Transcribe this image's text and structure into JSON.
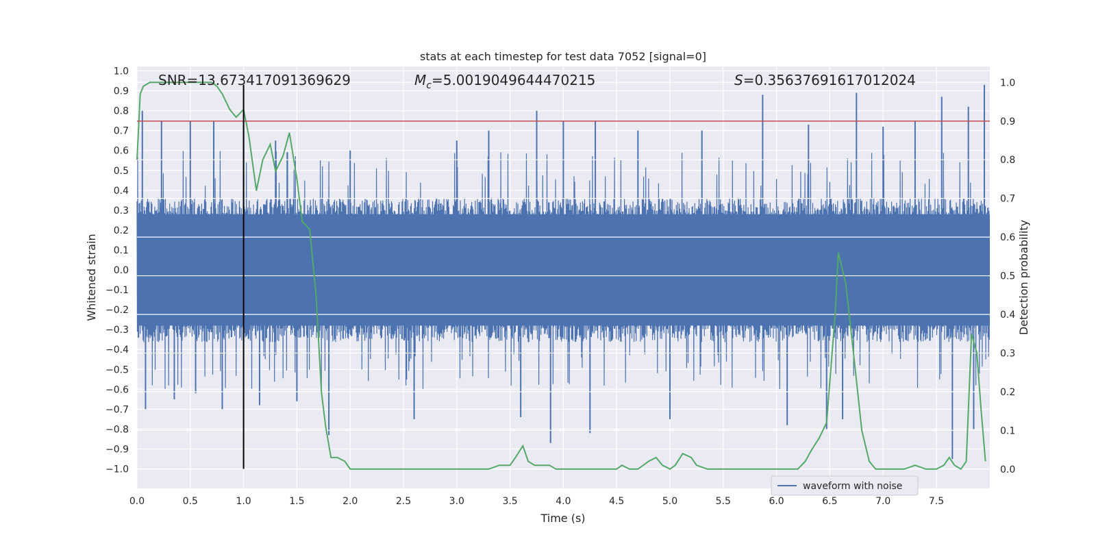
{
  "chart_data": {
    "type": "line",
    "title": "stats at each timestep for test data 7052 [signal=0]",
    "xlabel": "Time (s)",
    "ylabel_left": "Whitened strain",
    "ylabel_right": "Detection probability",
    "xlim": [
      0.0,
      8.0
    ],
    "ylim_left": [
      -1.1,
      1.05
    ],
    "ylim_right": [
      -0.05,
      1.03
    ],
    "xticks": [
      "0.0",
      "0.5",
      "1.0",
      "1.5",
      "2.0",
      "2.5",
      "3.0",
      "3.5",
      "4.0",
      "4.5",
      "5.0",
      "5.5",
      "6.0",
      "6.5",
      "7.0",
      "7.5"
    ],
    "yticks_left": [
      "1.0",
      "0.9",
      "0.8",
      "0.7",
      "0.6",
      "0.5",
      "0.4",
      "0.3",
      "0.2",
      "0.1",
      "0.0",
      "−0.1",
      "−0.2",
      "−0.3",
      "−0.4",
      "−0.5",
      "−0.6",
      "−0.7",
      "−0.8",
      "−0.9",
      "−1.0"
    ],
    "yticks_right": [
      "1.0",
      "0.9",
      "0.8",
      "0.7",
      "0.6",
      "0.5",
      "0.4",
      "0.3",
      "0.2",
      "0.1",
      "0.0"
    ],
    "grid": true,
    "annotations": {
      "snr": "SNR=13.673417091369629",
      "mc_symbol": "M",
      "mc_sub": "c",
      "mc_value": "=5.0019049644470215",
      "s_symbol": "S",
      "s_value": "=0.35637691617012024"
    },
    "threshold_right": 0.9,
    "vertical_marker": {
      "x": 1.0,
      "y_range_left": [
        -1.0,
        0.93
      ]
    },
    "legend": {
      "placement": "bottom-right",
      "entries": [
        "waveform with noise"
      ]
    },
    "waveform": {
      "name": "waveform with noise",
      "typical_amplitude": 0.33,
      "spikes": [
        [
          0.05,
          0.8
        ],
        [
          0.08,
          -0.7
        ],
        [
          0.23,
          0.75
        ],
        [
          0.35,
          -0.65
        ],
        [
          0.5,
          0.75
        ],
        [
          0.55,
          -0.62
        ],
        [
          0.72,
          0.75
        ],
        [
          0.8,
          -0.7
        ],
        [
          1.0,
          0.75
        ],
        [
          1.15,
          -0.68
        ],
        [
          1.3,
          0.65
        ],
        [
          1.5,
          -0.66
        ],
        [
          1.8,
          -0.83
        ],
        [
          2.0,
          0.6
        ],
        [
          2.6,
          -0.75
        ],
        [
          3.0,
          0.65
        ],
        [
          3.3,
          0.7
        ],
        [
          3.6,
          -0.74
        ],
        [
          3.75,
          0.8
        ],
        [
          3.88,
          -0.87
        ],
        [
          4.0,
          0.75
        ],
        [
          4.3,
          0.75
        ],
        [
          4.25,
          -0.82
        ],
        [
          4.7,
          0.7
        ],
        [
          5.0,
          -0.75
        ],
        [
          5.3,
          0.7
        ],
        [
          5.87,
          0.88
        ],
        [
          6.1,
          -0.78
        ],
        [
          6.3,
          0.73
        ],
        [
          6.47,
          -0.8
        ],
        [
          6.75,
          0.89
        ],
        [
          6.62,
          -0.75
        ],
        [
          7.0,
          0.72
        ],
        [
          7.3,
          0.75
        ],
        [
          7.55,
          0.87
        ],
        [
          7.65,
          -0.95
        ],
        [
          7.8,
          0.82
        ],
        [
          7.95,
          0.93
        ],
        [
          7.85,
          -0.8
        ]
      ]
    },
    "detection_probability": {
      "x": [
        0.0,
        0.03,
        0.06,
        0.12,
        0.3,
        0.5,
        0.6,
        0.7,
        0.75,
        0.8,
        0.87,
        0.93,
        1.0,
        1.05,
        1.12,
        1.18,
        1.25,
        1.3,
        1.37,
        1.43,
        1.5,
        1.55,
        1.62,
        1.68,
        1.73,
        1.77,
        1.82,
        1.88,
        1.95,
        2.0,
        2.1,
        2.3,
        2.5,
        2.7,
        2.9,
        3.1,
        3.3,
        3.4,
        3.5,
        3.55,
        3.62,
        3.67,
        3.73,
        3.8,
        3.87,
        3.93,
        4.0,
        4.3,
        4.5,
        4.55,
        4.62,
        4.7,
        4.8,
        4.87,
        4.93,
        5.0,
        5.05,
        5.12,
        5.2,
        5.25,
        5.35,
        5.5,
        5.7,
        5.9,
        6.1,
        6.2,
        6.27,
        6.33,
        6.4,
        6.47,
        6.55,
        6.58,
        6.65,
        6.73,
        6.8,
        6.87,
        6.93,
        7.0,
        7.1,
        7.2,
        7.3,
        7.4,
        7.5,
        7.57,
        7.62,
        7.67,
        7.73,
        7.78,
        7.83,
        7.88,
        7.92,
        7.96
      ],
      "y": [
        0.8,
        0.97,
        0.99,
        1.0,
        1.0,
        1.0,
        1.0,
        1.0,
        0.99,
        0.97,
        0.93,
        0.91,
        0.93,
        0.86,
        0.72,
        0.8,
        0.84,
        0.77,
        0.81,
        0.87,
        0.75,
        0.64,
        0.62,
        0.45,
        0.2,
        0.11,
        0.03,
        0.03,
        0.02,
        0.0,
        0.0,
        0.0,
        0.0,
        0.0,
        0.0,
        0.0,
        0.0,
        0.01,
        0.01,
        0.03,
        0.06,
        0.02,
        0.01,
        0.01,
        0.01,
        0.0,
        0.0,
        0.0,
        0.0,
        0.01,
        0.0,
        0.0,
        0.02,
        0.03,
        0.01,
        0.0,
        0.01,
        0.04,
        0.03,
        0.01,
        0.0,
        0.0,
        0.0,
        0.0,
        0.0,
        0.0,
        0.02,
        0.05,
        0.08,
        0.12,
        0.4,
        0.56,
        0.48,
        0.28,
        0.1,
        0.02,
        0.0,
        0.0,
        0.0,
        0.0,
        0.01,
        0.0,
        0.0,
        0.01,
        0.03,
        0.01,
        0.0,
        0.02,
        0.35,
        0.3,
        0.15,
        0.02
      ],
      "color": "#55a868"
    },
    "colors": {
      "waveform": "#4c72b0",
      "probability": "#55a868",
      "threshold": "#c44e52",
      "marker": "#000000",
      "plot_bg": "#eaeaf2",
      "grid": "#ffffff"
    }
  }
}
